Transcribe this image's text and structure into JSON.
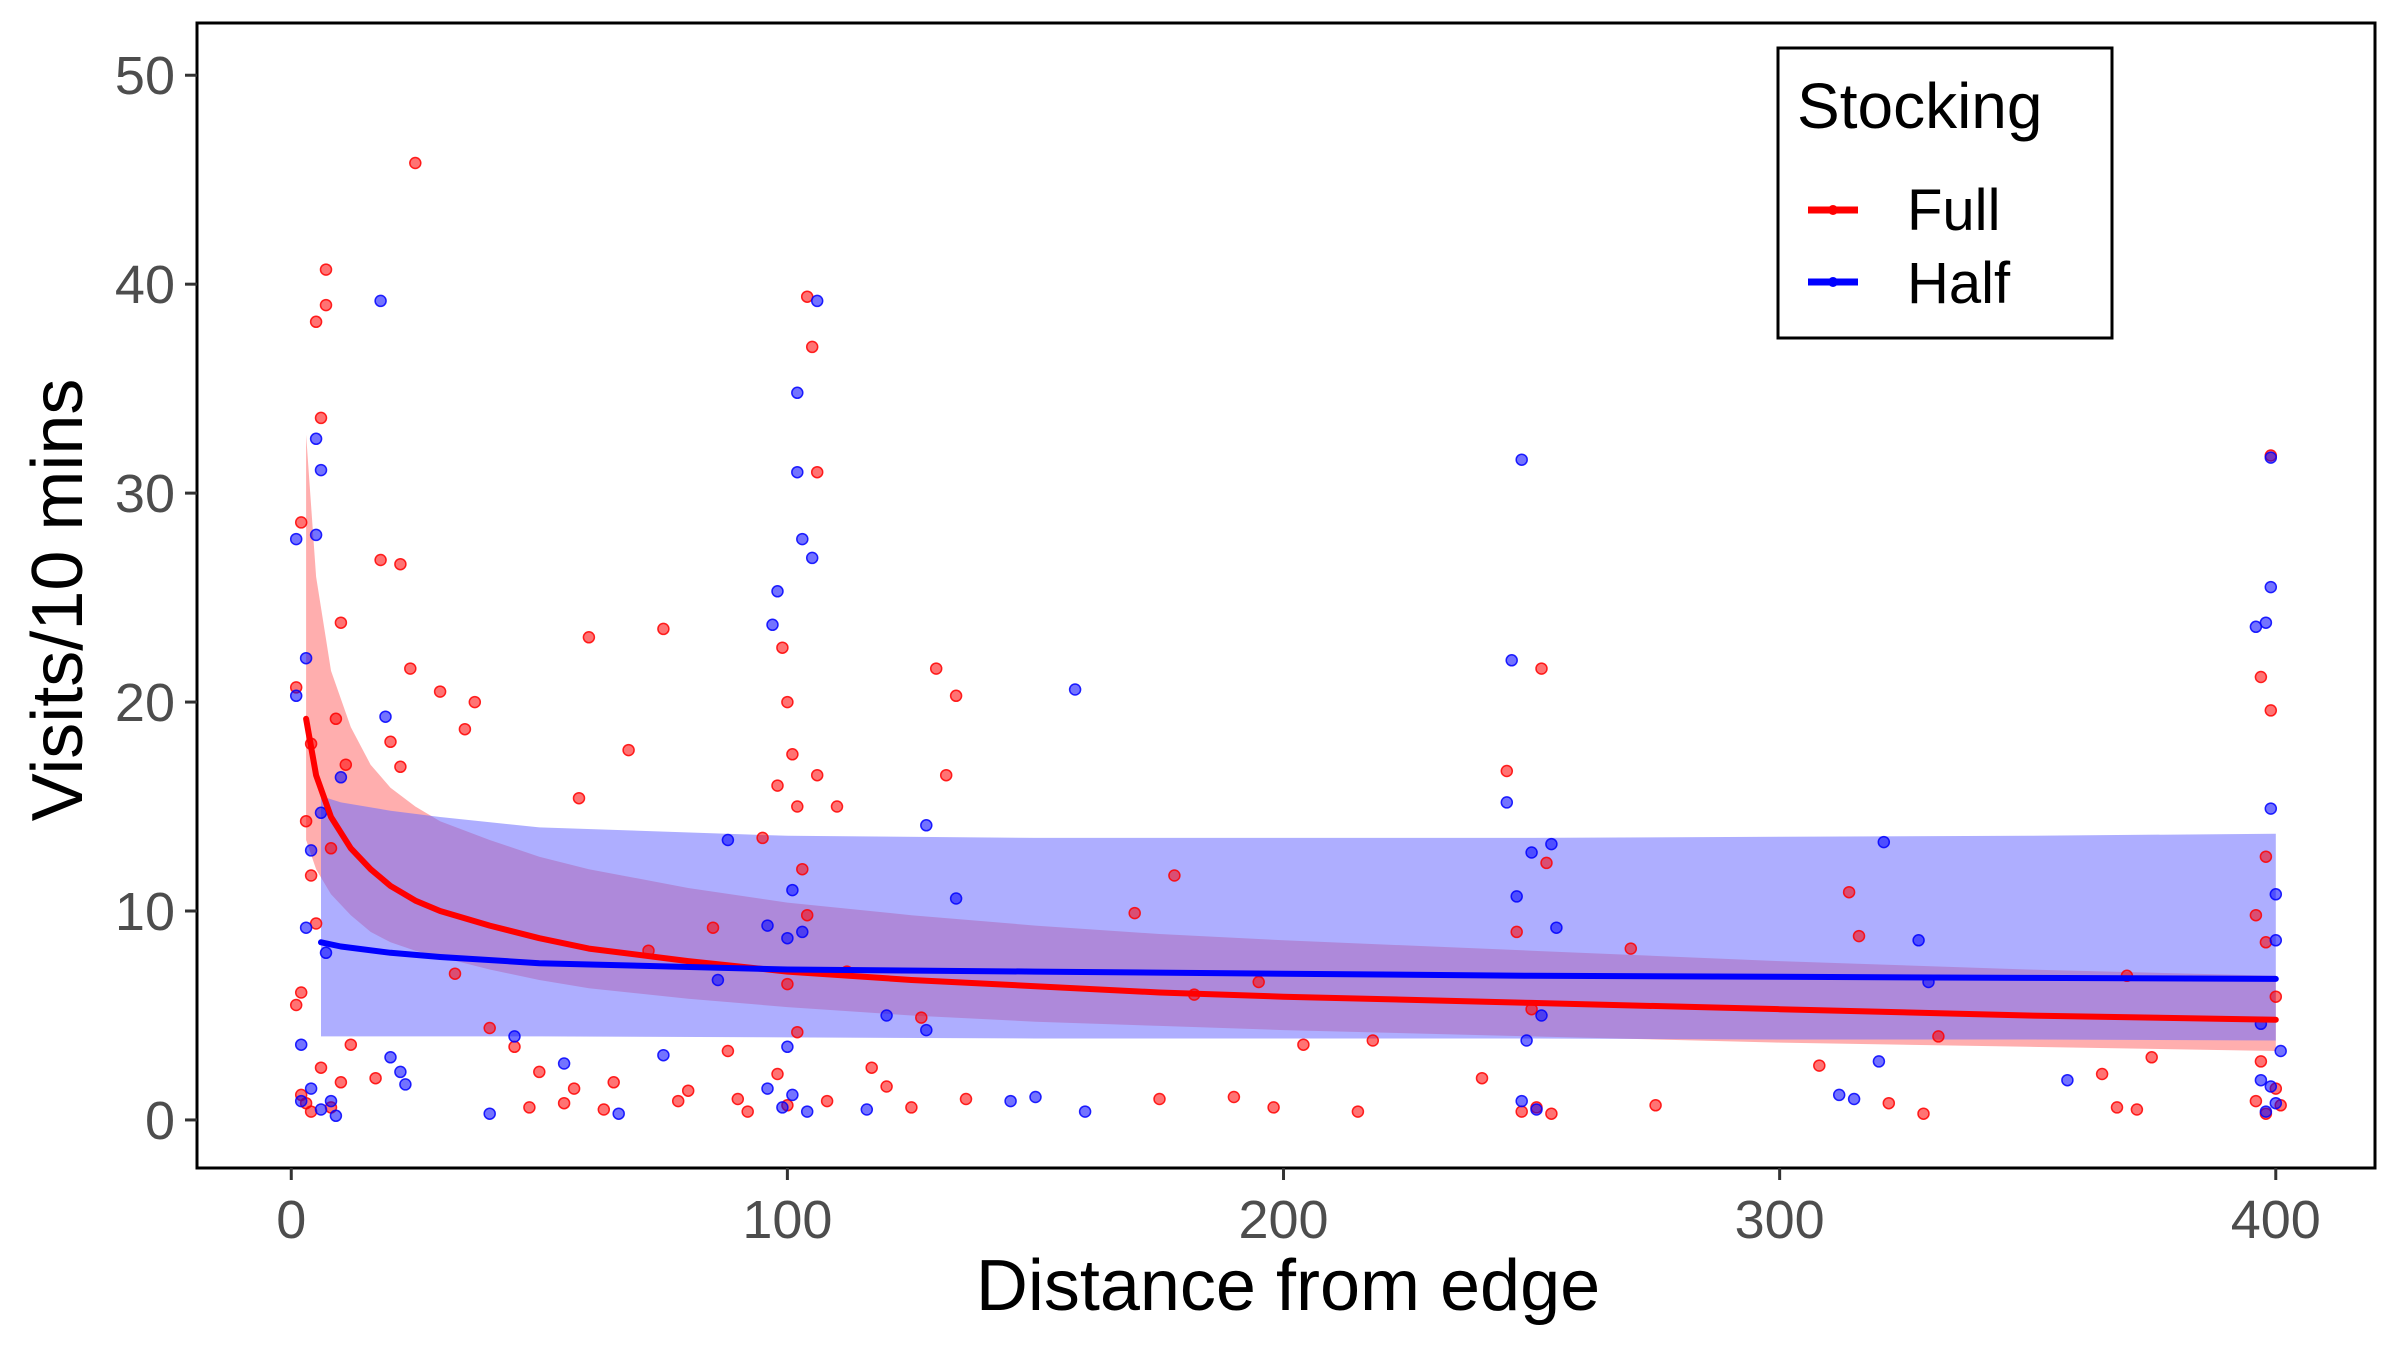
{
  "chart_data": {
    "type": "scatter",
    "title": "",
    "xlabel": "Distance from edge",
    "ylabel": "Visits/10 mins",
    "xlim": [
      -19,
      420
    ],
    "ylim": [
      -2.3,
      52.5
    ],
    "x_ticks": [
      0,
      100,
      200,
      300,
      400
    ],
    "y_ticks": [
      0,
      10,
      20,
      30,
      40,
      50
    ],
    "grid": false,
    "legend": {
      "title": "Stocking",
      "position": "top-right",
      "entries": [
        {
          "label": "Full",
          "color": "#ff0000"
        },
        {
          "label": "Half",
          "color": "#0000ff"
        }
      ]
    },
    "series": [
      {
        "name": "Full",
        "color": "#ff0000",
        "band_color": "#ff6b6b",
        "fit": {
          "x": [
            3,
            5,
            8,
            12,
            16,
            20,
            25,
            30,
            40,
            50,
            60,
            80,
            100,
            125,
            150,
            175,
            200,
            250,
            300,
            350,
            400
          ],
          "y": [
            19.2,
            16.5,
            14.5,
            13.0,
            12.0,
            11.2,
            10.5,
            10.0,
            9.3,
            8.7,
            8.2,
            7.6,
            7.1,
            6.7,
            6.4,
            6.1,
            5.9,
            5.6,
            5.3,
            5.0,
            4.8
          ],
          "lower": [
            13.4,
            12.0,
            10.8,
            9.8,
            9.0,
            8.5,
            8.1,
            7.8,
            7.2,
            6.7,
            6.3,
            5.8,
            5.4,
            5.0,
            4.7,
            4.5,
            4.3,
            4.0,
            3.7,
            3.5,
            3.3
          ],
          "upper": [
            32.8,
            26.0,
            21.5,
            18.8,
            17.0,
            15.9,
            15.0,
            14.3,
            13.4,
            12.6,
            12.0,
            11.1,
            10.4,
            9.8,
            9.3,
            8.9,
            8.6,
            8.1,
            7.6,
            7.2,
            6.9
          ]
        },
        "points": [
          [
            1,
            20.7
          ],
          [
            2,
            28.6
          ],
          [
            3,
            14.3
          ],
          [
            4,
            11.7
          ],
          [
            5,
            9.4
          ],
          [
            4,
            18.0
          ],
          [
            5,
            38.2
          ],
          [
            6,
            33.6
          ],
          [
            7,
            40.7
          ],
          [
            7,
            39.0
          ],
          [
            9,
            19.2
          ],
          [
            10,
            23.8
          ],
          [
            11,
            17.0
          ],
          [
            8,
            13.0
          ],
          [
            6,
            2.5
          ],
          [
            3,
            0.8
          ],
          [
            2,
            1.2
          ],
          [
            4,
            0.4
          ],
          [
            8,
            0.6
          ],
          [
            10,
            1.8
          ],
          [
            1,
            5.5
          ],
          [
            2,
            6.1
          ],
          [
            12,
            3.6
          ],
          [
            18,
            26.8
          ],
          [
            22,
            26.6
          ],
          [
            24,
            21.6
          ],
          [
            25,
            45.8
          ],
          [
            20,
            18.1
          ],
          [
            17,
            2.0
          ],
          [
            22,
            16.9
          ],
          [
            30,
            20.5
          ],
          [
            35,
            18.7
          ],
          [
            37,
            20.0
          ],
          [
            33,
            7.0
          ],
          [
            40,
            4.4
          ],
          [
            45,
            3.5
          ],
          [
            48,
            0.6
          ],
          [
            50,
            2.3
          ],
          [
            55,
            0.8
          ],
          [
            57,
            1.5
          ],
          [
            58,
            15.4
          ],
          [
            60,
            23.1
          ],
          [
            63,
            0.5
          ],
          [
            65,
            1.8
          ],
          [
            68,
            17.7
          ],
          [
            72,
            8.1
          ],
          [
            75,
            23.5
          ],
          [
            78,
            0.9
          ],
          [
            80,
            1.4
          ],
          [
            85,
            9.2
          ],
          [
            88,
            3.3
          ],
          [
            90,
            1.0
          ],
          [
            92,
            0.4
          ],
          [
            95,
            13.5
          ],
          [
            98,
            16.0
          ],
          [
            99,
            22.6
          ],
          [
            100,
            20.0
          ],
          [
            101,
            17.5
          ],
          [
            102,
            15.0
          ],
          [
            103,
            12.0
          ],
          [
            104,
            39.4
          ],
          [
            105,
            37.0
          ],
          [
            106,
            31.0
          ],
          [
            106,
            16.5
          ],
          [
            104,
            9.8
          ],
          [
            100,
            6.5
          ],
          [
            102,
            4.2
          ],
          [
            98,
            2.2
          ],
          [
            100,
            0.7
          ],
          [
            108,
            0.9
          ],
          [
            110,
            15.0
          ],
          [
            112,
            7.1
          ],
          [
            117,
            2.5
          ],
          [
            120,
            1.6
          ],
          [
            125,
            0.6
          ],
          [
            127,
            4.9
          ],
          [
            130,
            21.6
          ],
          [
            132,
            16.5
          ],
          [
            134,
            20.3
          ],
          [
            136,
            1.0
          ],
          [
            170,
            9.9
          ],
          [
            175,
            1.0
          ],
          [
            178,
            11.7
          ],
          [
            182,
            6.0
          ],
          [
            190,
            1.1
          ],
          [
            195,
            6.6
          ],
          [
            198,
            0.6
          ],
          [
            204,
            3.6
          ],
          [
            215,
            0.4
          ],
          [
            218,
            3.8
          ],
          [
            240,
            2.0
          ],
          [
            245,
            16.7
          ],
          [
            247,
            9.0
          ],
          [
            250,
            5.3
          ],
          [
            252,
            21.6
          ],
          [
            253,
            12.3
          ],
          [
            248,
            0.4
          ],
          [
            251,
            0.6
          ],
          [
            254,
            0.3
          ],
          [
            270,
            8.2
          ],
          [
            275,
            0.7
          ],
          [
            308,
            2.6
          ],
          [
            314,
            10.9
          ],
          [
            316,
            8.8
          ],
          [
            322,
            0.8
          ],
          [
            329,
            0.3
          ],
          [
            332,
            4.0
          ],
          [
            365,
            2.2
          ],
          [
            368,
            0.6
          ],
          [
            370,
            6.9
          ],
          [
            372,
            0.5
          ],
          [
            375,
            3.0
          ],
          [
            396,
            9.8
          ],
          [
            397,
            21.2
          ],
          [
            398,
            12.6
          ],
          [
            398,
            8.5
          ],
          [
            399,
            19.6
          ],
          [
            399,
            31.8
          ],
          [
            397,
            2.8
          ],
          [
            396,
            0.9
          ],
          [
            398,
            0.3
          ],
          [
            400,
            1.5
          ],
          [
            400,
            5.9
          ],
          [
            401,
            0.7
          ]
        ]
      },
      {
        "name": "Half",
        "color": "#0000ff",
        "band_color": "#6b6bff",
        "fit": {
          "x": [
            6,
            10,
            20,
            30,
            50,
            100,
            150,
            200,
            250,
            300,
            350,
            400
          ],
          "y": [
            8.5,
            8.3,
            8.0,
            7.8,
            7.5,
            7.2,
            7.1,
            7.0,
            6.9,
            6.85,
            6.8,
            6.75
          ],
          "lower": [
            4.0,
            4.0,
            4.0,
            4.0,
            4.0,
            3.95,
            3.9,
            3.9,
            3.9,
            3.85,
            3.85,
            3.8
          ],
          "upper": [
            15.5,
            15.2,
            14.8,
            14.5,
            14.0,
            13.6,
            13.5,
            13.5,
            13.5,
            13.55,
            13.6,
            13.7
          ]
        },
        "points": [
          [
            1,
            27.8
          ],
          [
            1,
            20.3
          ],
          [
            3,
            22.1
          ],
          [
            5,
            32.6
          ],
          [
            5,
            28.0
          ],
          [
            6,
            31.1
          ],
          [
            6,
            14.7
          ],
          [
            4,
            12.9
          ],
          [
            3,
            9.2
          ],
          [
            7,
            8.0
          ],
          [
            2,
            3.6
          ],
          [
            4,
            1.5
          ],
          [
            6,
            0.5
          ],
          [
            8,
            0.9
          ],
          [
            9,
            0.2
          ],
          [
            2,
            0.9
          ],
          [
            10,
            16.4
          ],
          [
            18,
            39.2
          ],
          [
            19,
            19.3
          ],
          [
            20,
            3.0
          ],
          [
            22,
            2.3
          ],
          [
            23,
            1.7
          ],
          [
            40,
            0.3
          ],
          [
            45,
            4.0
          ],
          [
            55,
            2.7
          ],
          [
            66,
            0.3
          ],
          [
            75,
            3.1
          ],
          [
            86,
            6.7
          ],
          [
            88,
            13.4
          ],
          [
            96,
            9.3
          ],
          [
            97,
            23.7
          ],
          [
            98,
            25.3
          ],
          [
            100,
            8.7
          ],
          [
            101,
            11.0
          ],
          [
            102,
            34.8
          ],
          [
            102,
            31.0
          ],
          [
            103,
            27.8
          ],
          [
            105,
            26.9
          ],
          [
            106,
            39.2
          ],
          [
            103,
            9.0
          ],
          [
            101,
            1.2
          ],
          [
            99,
            0.6
          ],
          [
            104,
            0.4
          ],
          [
            96,
            1.5
          ],
          [
            100,
            3.5
          ],
          [
            116,
            0.5
          ],
          [
            120,
            5.0
          ],
          [
            128,
            4.3
          ],
          [
            128,
            14.1
          ],
          [
            134,
            10.6
          ],
          [
            145,
            0.9
          ],
          [
            150,
            1.1
          ],
          [
            158,
            20.6
          ],
          [
            160,
            0.4
          ],
          [
            246,
            22.0
          ],
          [
            245,
            15.2
          ],
          [
            247,
            10.7
          ],
          [
            248,
            31.6
          ],
          [
            250,
            12.8
          ],
          [
            254,
            13.2
          ],
          [
            249,
            3.8
          ],
          [
            252,
            5.0
          ],
          [
            248,
            0.9
          ],
          [
            251,
            0.5
          ],
          [
            255,
            9.2
          ],
          [
            312,
            1.2
          ],
          [
            315,
            1.0
          ],
          [
            320,
            2.8
          ],
          [
            321,
            13.3
          ],
          [
            328,
            8.6
          ],
          [
            330,
            6.6
          ],
          [
            358,
            1.9
          ],
          [
            396,
            23.6
          ],
          [
            397,
            4.6
          ],
          [
            398,
            23.8
          ],
          [
            399,
            31.7
          ],
          [
            399,
            25.5
          ],
          [
            399,
            14.9
          ],
          [
            400,
            10.8
          ],
          [
            400,
            8.6
          ],
          [
            401,
            3.3
          ],
          [
            398,
            0.4
          ],
          [
            399,
            1.6
          ],
          [
            400,
            0.8
          ],
          [
            397,
            1.9
          ]
        ]
      }
    ]
  }
}
